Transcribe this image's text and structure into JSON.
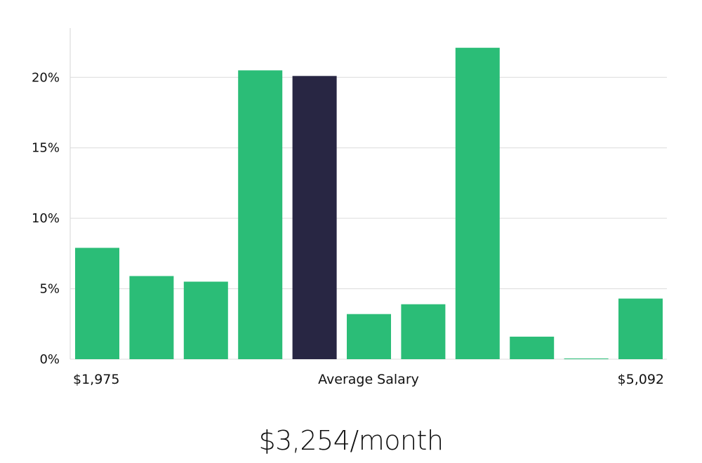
{
  "chart_data": {
    "type": "bar",
    "categories": [
      "1",
      "2",
      "3",
      "4",
      "5",
      "6",
      "7",
      "8",
      "9",
      "10",
      "11"
    ],
    "values": [
      7.9,
      5.9,
      5.5,
      20.5,
      20.1,
      3.2,
      3.9,
      22.1,
      1.6,
      0.05,
      4.3
    ],
    "highlight_index": 4,
    "ylim": [
      0,
      23.5
    ],
    "yticks": [
      0,
      5,
      10,
      15,
      20
    ],
    "ytick_labels": [
      "0%",
      "5%",
      "10%",
      "15%",
      "20%"
    ],
    "x_min_label": "$1,975",
    "x_center_label": "Average Salary",
    "x_max_label": "$5,092",
    "grid": true,
    "colors": {
      "bar": "#2bbd77",
      "highlight": "#282643",
      "grid": "#dcdcdc"
    }
  },
  "footer": {
    "salary_label": "$3,254/month"
  }
}
